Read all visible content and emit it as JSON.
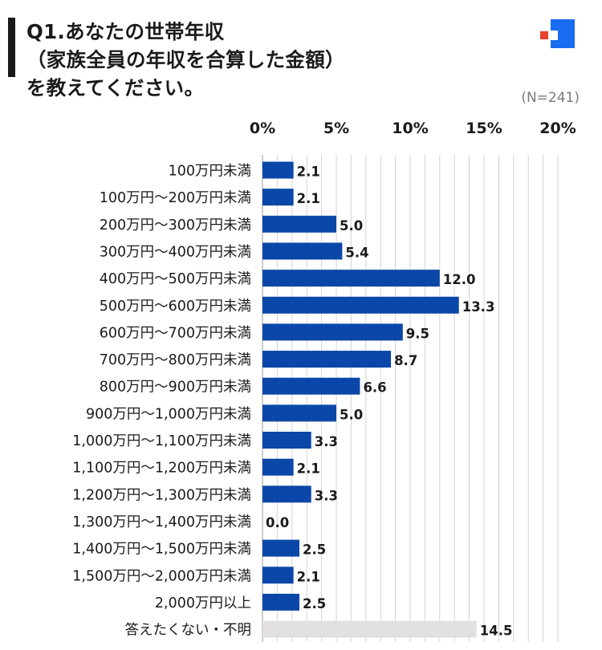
{
  "title": {
    "line1": "Q1.あなたの世帯年収",
    "line2": "（家族全員の年収を合算した金額）",
    "line3": "を教えてください。"
  },
  "sample_size": "(N=241)",
  "colors": {
    "bar": "#0b47a8",
    "bar_muted": "#e2e0e0",
    "grid": "#d4d4d4",
    "logo_red": "#e8412c",
    "logo_blue": "#1a6cf0"
  },
  "chart_data": {
    "type": "bar",
    "orientation": "horizontal",
    "xlim": [
      0,
      20
    ],
    "x_ticks": [
      "0%",
      "5%",
      "10%",
      "15%",
      "20%"
    ],
    "grid": true,
    "categories": [
      "100万円未満",
      "100万円〜200万円未満",
      "200万円〜300万円未満",
      "300万円〜400万円未満",
      "400万円〜500万円未満",
      "500万円〜600万円未満",
      "600万円〜700万円未満",
      "700万円〜800万円未満",
      "800万円〜900万円未満",
      "900万円〜1,000万円未満",
      "1,000万円〜1,100万円未満",
      "1,100万円〜1,200万円未満",
      "1,200万円〜1,300万円未満",
      "1,300万円〜1,400万円未満",
      "1,400万円〜1,500万円未満",
      "1,500万円〜2,000万円未満",
      "2,000万円以上",
      "答えたくない・不明"
    ],
    "values": [
      2.1,
      2.1,
      5.0,
      5.4,
      12.0,
      13.3,
      9.5,
      8.7,
      6.6,
      5.0,
      3.3,
      2.1,
      3.3,
      0.0,
      2.5,
      2.1,
      2.5,
      14.5
    ],
    "value_labels": [
      "2.1",
      "2.1",
      "5.0",
      "5.4",
      "12.0",
      "13.3",
      "9.5",
      "8.7",
      "6.6",
      "5.0",
      "3.3",
      "2.1",
      "3.3",
      "0.0",
      "2.5",
      "2.1",
      "2.5",
      "14.5"
    ],
    "muted_categories": [
      "答えたくない・不明"
    ]
  }
}
